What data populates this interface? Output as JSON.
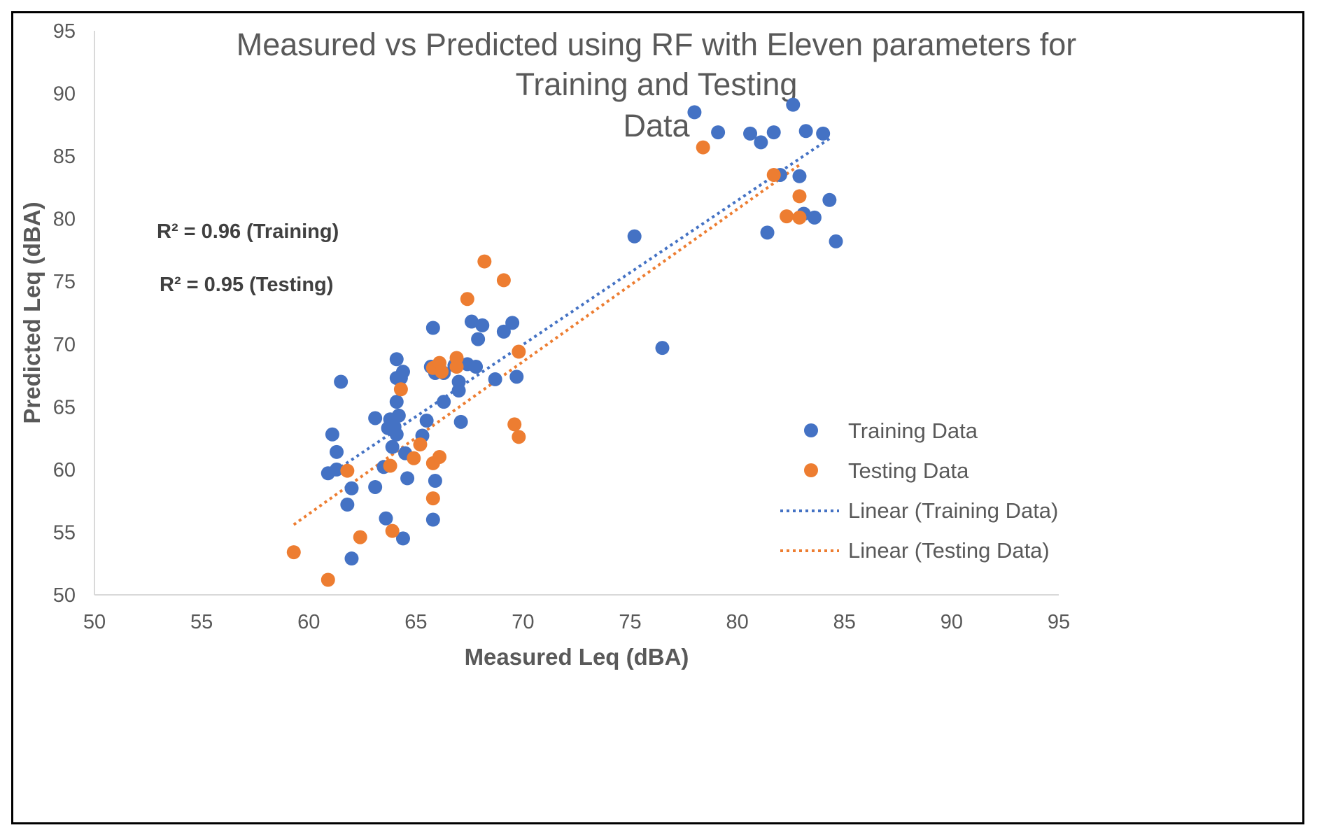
{
  "chart_data": {
    "type": "scatter",
    "title_lines": [
      "Measured vs Predicted using RF with Eleven parameters for",
      "Training and Testing",
      "Data"
    ],
    "xlabel": "Measured Leq (dBA)",
    "ylabel": "Predicted Leq (dBA)",
    "xlim": [
      50,
      95
    ],
    "ylim": [
      50,
      95
    ],
    "xticks": [
      50,
      55,
      60,
      65,
      70,
      75,
      80,
      85,
      90,
      95
    ],
    "yticks": [
      50,
      55,
      60,
      65,
      70,
      75,
      80,
      85,
      90,
      95
    ],
    "grid": false,
    "legend_position": "right",
    "annotations": [
      "R² = 0.96 (Training)",
      "R² = 0.95 (Testing)"
    ],
    "series": [
      {
        "name": "Training Data",
        "color": "#4472C4",
        "points": [
          [
            61.1,
            62.8
          ],
          [
            61.5,
            67.0
          ],
          [
            61.3,
            61.4
          ],
          [
            60.9,
            59.7
          ],
          [
            61.3,
            60.0
          ],
          [
            62.0,
            58.5
          ],
          [
            61.8,
            57.2
          ],
          [
            62.0,
            52.9
          ],
          [
            63.1,
            64.1
          ],
          [
            63.1,
            58.6
          ],
          [
            63.6,
            56.1
          ],
          [
            63.5,
            60.2
          ],
          [
            63.7,
            63.3
          ],
          [
            63.8,
            64.0
          ],
          [
            63.9,
            61.8
          ],
          [
            64.0,
            63.4
          ],
          [
            64.1,
            67.3
          ],
          [
            64.1,
            68.8
          ],
          [
            64.1,
            65.4
          ],
          [
            64.2,
            64.3
          ],
          [
            64.1,
            62.8
          ],
          [
            64.3,
            67.3
          ],
          [
            64.4,
            67.8
          ],
          [
            64.5,
            61.3
          ],
          [
            64.6,
            59.3
          ],
          [
            64.4,
            54.5
          ],
          [
            65.3,
            62.7
          ],
          [
            65.5,
            63.9
          ],
          [
            65.7,
            68.2
          ],
          [
            65.8,
            71.3
          ],
          [
            65.9,
            67.7
          ],
          [
            65.9,
            59.1
          ],
          [
            65.8,
            56.0
          ],
          [
            66.1,
            68.1
          ],
          [
            66.3,
            65.4
          ],
          [
            66.3,
            67.7
          ],
          [
            66.8,
            68.3
          ],
          [
            67.0,
            67.0
          ],
          [
            67.0,
            66.3
          ],
          [
            67.1,
            63.8
          ],
          [
            67.4,
            68.4
          ],
          [
            67.6,
            71.8
          ],
          [
            67.8,
            68.2
          ],
          [
            67.9,
            70.4
          ],
          [
            68.1,
            71.5
          ],
          [
            68.7,
            67.2
          ],
          [
            69.1,
            71.0
          ],
          [
            69.5,
            71.7
          ],
          [
            69.7,
            67.4
          ],
          [
            75.2,
            78.6
          ],
          [
            76.5,
            69.7
          ],
          [
            78.0,
            88.5
          ],
          [
            79.1,
            86.9
          ],
          [
            80.6,
            86.8
          ],
          [
            81.1,
            86.1
          ],
          [
            81.4,
            78.9
          ],
          [
            81.7,
            86.9
          ],
          [
            82.0,
            83.5
          ],
          [
            82.6,
            89.1
          ],
          [
            82.9,
            83.4
          ],
          [
            83.1,
            80.4
          ],
          [
            83.2,
            87.0
          ],
          [
            83.6,
            80.1
          ],
          [
            84.0,
            86.8
          ],
          [
            84.3,
            81.5
          ],
          [
            84.6,
            78.2
          ]
        ],
        "trendline": {
          "label": "Linear (Training Data)",
          "x": [
            61.5,
            84.3
          ],
          "y": [
            60.2,
            86.4
          ]
        }
      },
      {
        "name": "Testing Data",
        "color": "#ED7D31",
        "points": [
          [
            59.3,
            53.4
          ],
          [
            60.9,
            51.2
          ],
          [
            61.8,
            59.9
          ],
          [
            62.4,
            54.6
          ],
          [
            63.9,
            55.1
          ],
          [
            63.8,
            60.3
          ],
          [
            64.3,
            66.4
          ],
          [
            64.9,
            60.9
          ],
          [
            65.2,
            62.0
          ],
          [
            65.8,
            60.5
          ],
          [
            65.8,
            57.7
          ],
          [
            65.8,
            68.1
          ],
          [
            66.1,
            68.5
          ],
          [
            66.2,
            67.8
          ],
          [
            66.1,
            61.0
          ],
          [
            66.9,
            68.9
          ],
          [
            66.9,
            68.2
          ],
          [
            67.4,
            73.6
          ],
          [
            68.2,
            76.6
          ],
          [
            69.1,
            75.1
          ],
          [
            69.6,
            63.6
          ],
          [
            69.8,
            62.6
          ],
          [
            69.8,
            69.4
          ],
          [
            78.4,
            85.7
          ],
          [
            81.7,
            83.5
          ],
          [
            82.3,
            80.2
          ],
          [
            82.9,
            81.8
          ],
          [
            82.9,
            80.1
          ]
        ],
        "trendline": {
          "label": "Linear (Testing Data)",
          "x": [
            59.3,
            82.9
          ],
          "y": [
            55.6,
            84.3
          ]
        }
      }
    ]
  }
}
